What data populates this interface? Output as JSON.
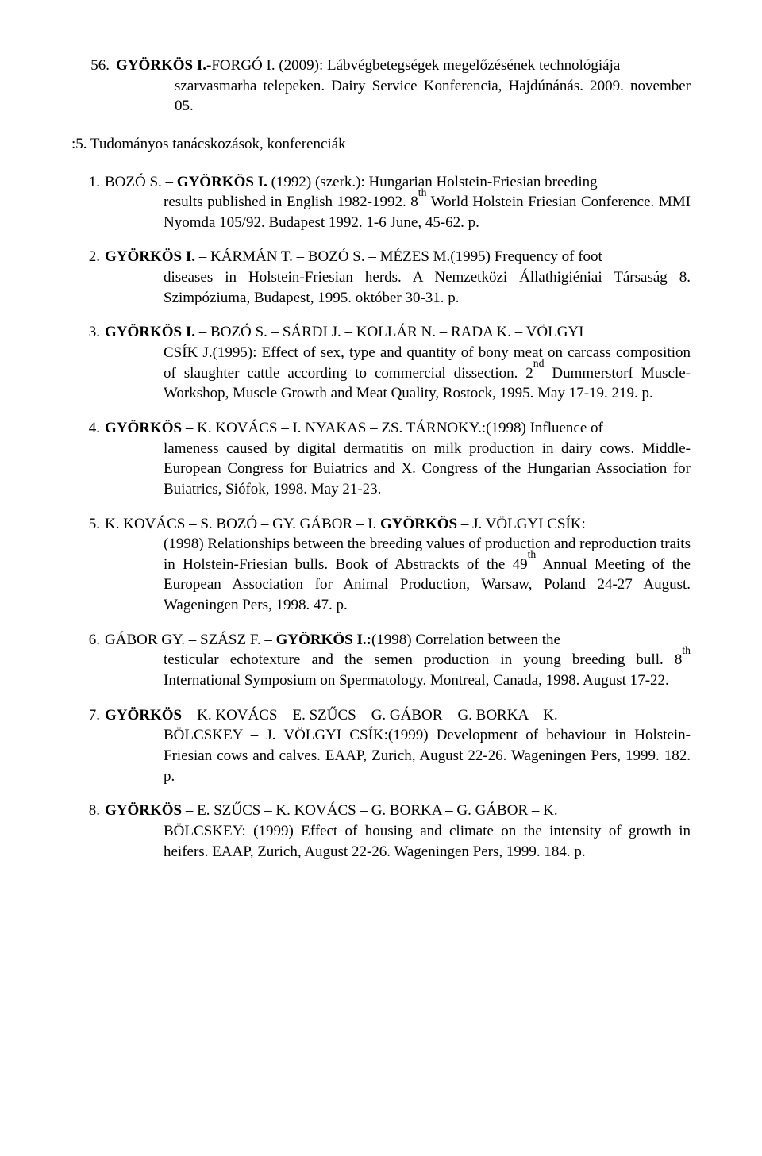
{
  "top_entry": {
    "num": "56.",
    "line1_bold": "GYÖRKÖS I.",
    "line1_rest": "-FORGÓ I. (2009): Lábvégbetegségek megelőzésének technológiája",
    "line2": "szarvasmarha telepeken. Dairy Service Konferencia, Hajdúnánás. 2009. november 05."
  },
  "section_heading": ":5. Tudományos tanácskozások, konferenciák",
  "refs": [
    {
      "num": "1.",
      "first_plain_a": "BOZÓ S. – ",
      "first_bold": "GYÖRKÖS I.",
      "first_plain_b": " (1992) (szerk.): Hungarian Holstein-Friesian breeding",
      "hang": "results published in English 1982-1992. 8<sup>th</sup> World Holstein Friesian Conference. MMI Nyomda 105/92. Budapest 1992. 1-6 June, 45-62. p."
    },
    {
      "num": "2.",
      "first_bold": "GYÖRKÖS I.",
      "first_plain_b": " – KÁRMÁN T. – BOZÓ S. – MÉZES M.(1995) Frequency of foot",
      "hang": "diseases in Holstein-Friesian herds. A Nemzetközi Állathigiéniai Társaság 8. Szimpóziuma, Budapest, 1995. október 30-31. p."
    },
    {
      "num": "3.",
      "first_bold": "GYÖRKÖS I.",
      "first_plain_b": " – BOZÓ S. – SÁRDI J. – KOLLÁR N. – RADA K. – VÖLGYI",
      "hang": "CSÍK J.(1995): Effect of sex, type and quantity of bony meat on carcass composition of slaughter cattle according to commercial dissection. 2<sup>nd</sup> Dummerstorf Muscle-Workshop, Muscle Growth and Meat Quality, Rostock, 1995. May 17-19. 219. p."
    },
    {
      "num": "4.",
      "first_bold": "GYÖRKÖS",
      "first_plain_b": " – K. KOVÁCS – I. NYAKAS – ZS. TÁRNOKY.:(1998) Influence of",
      "hang": "lameness caused by digital dermatitis on milk production in dairy cows. Middle-European Congress for Buiatrics and X. Congress of the Hungarian Association for Buiatrics, Siófok, 1998. May 21-23."
    },
    {
      "num": "5.",
      "first_plain_a": "K. KOVÁCS – S. BOZÓ – GY. GÁBOR – I. ",
      "first_bold": "GYÖRKÖS",
      "first_plain_b": " – J. VÖLGYI CSÍK:",
      "hang": "(1998) Relationships between the breeding values of production and reproduction traits in Holstein-Friesian bulls. Book of Abstrackts of the 49<sup>th</sup> Annual Meeting of the European Association for Animal Production, Warsaw, Poland 24-27 August. Wageningen Pers, 1998. 47. p."
    },
    {
      "num": "6.",
      "first_plain_a": "GÁBOR GY. – SZÁSZ F. – ",
      "first_bold": "GYÖRKÖS I.:",
      "first_plain_b": "(1998) Correlation between the",
      "hang": "testicular echotexture and the semen production in young breeding bull. 8<sup>th</sup> International Symposium on Spermatology. Montreal, Canada, 1998. August 17-22."
    },
    {
      "num": "7.",
      "first_bold": "GYÖRKÖS",
      "first_plain_b": " – K. KOVÁCS – E. SZŰCS – G. GÁBOR – G. BORKA – K.",
      "hang": "BÖLCSKEY – J. VÖLGYI CSÍK:(1999) Development of behaviour in Holstein-Friesian cows and calves. EAAP, Zurich, August 22-26. Wageningen Pers, 1999. 182. p."
    },
    {
      "num": "8.",
      "first_bold": "GYÖRKÖS",
      "first_plain_b": " – E. SZŰCS – K. KOVÁCS – G. BORKA – G. GÁBOR – K.",
      "hang": "BÖLCSKEY: (1999) Effect of housing and climate on the intensity of growth in heifers. EAAP, Zurich, August 22-26. Wageningen Pers, 1999. 184. p."
    }
  ]
}
